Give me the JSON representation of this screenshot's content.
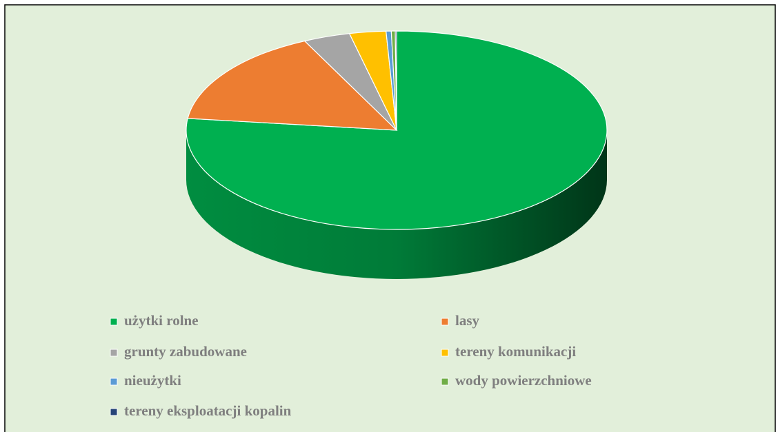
{
  "chart_data": {
    "type": "pie",
    "categories": [
      "użytki rolne",
      "lasy",
      "grunty zabudowane",
      "tereny komunikacji",
      "nieużytki",
      "wody powierzchniowe",
      "tereny eksploatacji kopalin"
    ],
    "values": [
      76.9,
      15.9,
      3.6,
      2.8,
      0.4,
      0.3,
      0.1
    ],
    "colors": [
      "#00b050",
      "#ed7d31",
      "#a5a5a5",
      "#ffc000",
      "#5b9bd5",
      "#70ad47",
      "#264478"
    ],
    "legend": "bottom"
  }
}
